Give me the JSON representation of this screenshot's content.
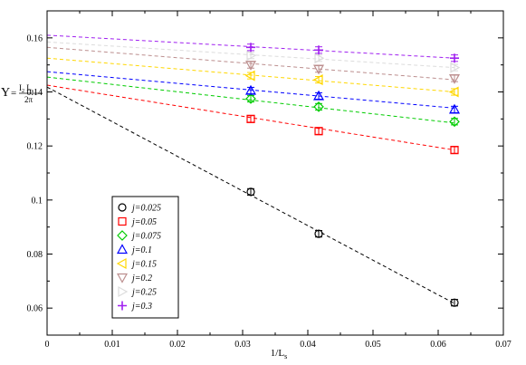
{
  "chart_data": {
    "type": "scatter",
    "xlabel": "1/L",
    "xlabel_sub": "s",
    "ylabel": {
      "symbol": "Υ",
      "equals": "=",
      "numerator": "I",
      "numerator_sub": "2",
      "numerator_rest": " L",
      "numerator_rest_sub": "s",
      "denominator": "2π"
    },
    "xlim": [
      0,
      0.07
    ],
    "ylim": [
      0.05,
      0.17
    ],
    "xticks": [
      0,
      0.01,
      0.02,
      0.03,
      0.04,
      0.05,
      0.06,
      0.07
    ],
    "xtick_labels": [
      "0",
      "0.01",
      "0.02",
      "0.03",
      "0.04",
      "0.05",
      "0.06",
      "0.07"
    ],
    "yticks": [
      0.06,
      0.08,
      0.1,
      0.12,
      0.14,
      0.16
    ],
    "ytick_labels": [
      "0.06",
      "0.08",
      "0.1",
      "0.12",
      "0.14",
      "0.16"
    ],
    "grid": false,
    "legend_position": "lower-left",
    "series": [
      {
        "name": "j=0.025",
        "color": "#000000",
        "marker": "circle",
        "x": [
          0.03125,
          0.04167,
          0.0625
        ],
        "y": [
          0.103,
          0.0875,
          0.062
        ],
        "err": [
          0.0012,
          0.0012,
          0.0012
        ],
        "fit_y0": 0.1418,
        "fit_x1": 0.0625,
        "fit_y1": 0.0617
      },
      {
        "name": "j=0.05",
        "color": "#ff0000",
        "marker": "square",
        "x": [
          0.03125,
          0.04167,
          0.0625
        ],
        "y": [
          0.13,
          0.1255,
          0.1185
        ],
        "err": [
          0.0012,
          0.0012,
          0.0012
        ],
        "fit_y0": 0.1425,
        "fit_x1": 0.0625,
        "fit_y1": 0.1185
      },
      {
        "name": "j=0.075",
        "color": "#00cc00",
        "marker": "diamond",
        "x": [
          0.03125,
          0.04167,
          0.0625
        ],
        "y": [
          0.1375,
          0.1345,
          0.129
        ],
        "err": [
          0.0012,
          0.0012,
          0.0012
        ],
        "fit_y0": 0.1455,
        "fit_x1": 0.0625,
        "fit_y1": 0.1285
      },
      {
        "name": "j=0.1",
        "color": "#0000ff",
        "marker": "triangle-up",
        "x": [
          0.03125,
          0.04167,
          0.0625
        ],
        "y": [
          0.1405,
          0.1385,
          0.1335
        ],
        "err": [
          0.0012,
          0.0012,
          0.0012
        ],
        "fit_y0": 0.1475,
        "fit_x1": 0.0625,
        "fit_y1": 0.134
      },
      {
        "name": "j=0.15",
        "color": "#ffd700",
        "marker": "triangle-left",
        "x": [
          0.03125,
          0.04167,
          0.0625
        ],
        "y": [
          0.146,
          0.1445,
          0.14
        ],
        "err": [
          0.0012,
          0.0012,
          0.0012
        ],
        "fit_y0": 0.1525,
        "fit_x1": 0.0625,
        "fit_y1": 0.14
      },
      {
        "name": "j=0.2",
        "color": "#bc8f8f",
        "marker": "triangle-down",
        "x": [
          0.03125,
          0.04167,
          0.0625
        ],
        "y": [
          0.15,
          0.1485,
          0.145
        ],
        "err": [
          0.0012,
          0.0012,
          0.0012
        ],
        "fit_y0": 0.1565,
        "fit_x1": 0.0625,
        "fit_y1": 0.1445
      },
      {
        "name": "j=0.25",
        "color": "#dcdcdc",
        "marker": "triangle-right",
        "x": [
          0.03125,
          0.04167,
          0.0625
        ],
        "y": [
          0.1535,
          0.1525,
          0.149
        ],
        "err": [
          0.0012,
          0.0012,
          0.0012
        ],
        "fit_y0": 0.1585,
        "fit_x1": 0.0625,
        "fit_y1": 0.149
      },
      {
        "name": "j=0.3",
        "color": "#a020f0",
        "marker": "plus",
        "x": [
          0.03125,
          0.04167,
          0.0625
        ],
        "y": [
          0.1565,
          0.1555,
          0.1525
        ],
        "err": [
          0.0012,
          0.0012,
          0.0012
        ],
        "fit_y0": 0.161,
        "fit_x1": 0.0625,
        "fit_y1": 0.1525
      }
    ]
  }
}
